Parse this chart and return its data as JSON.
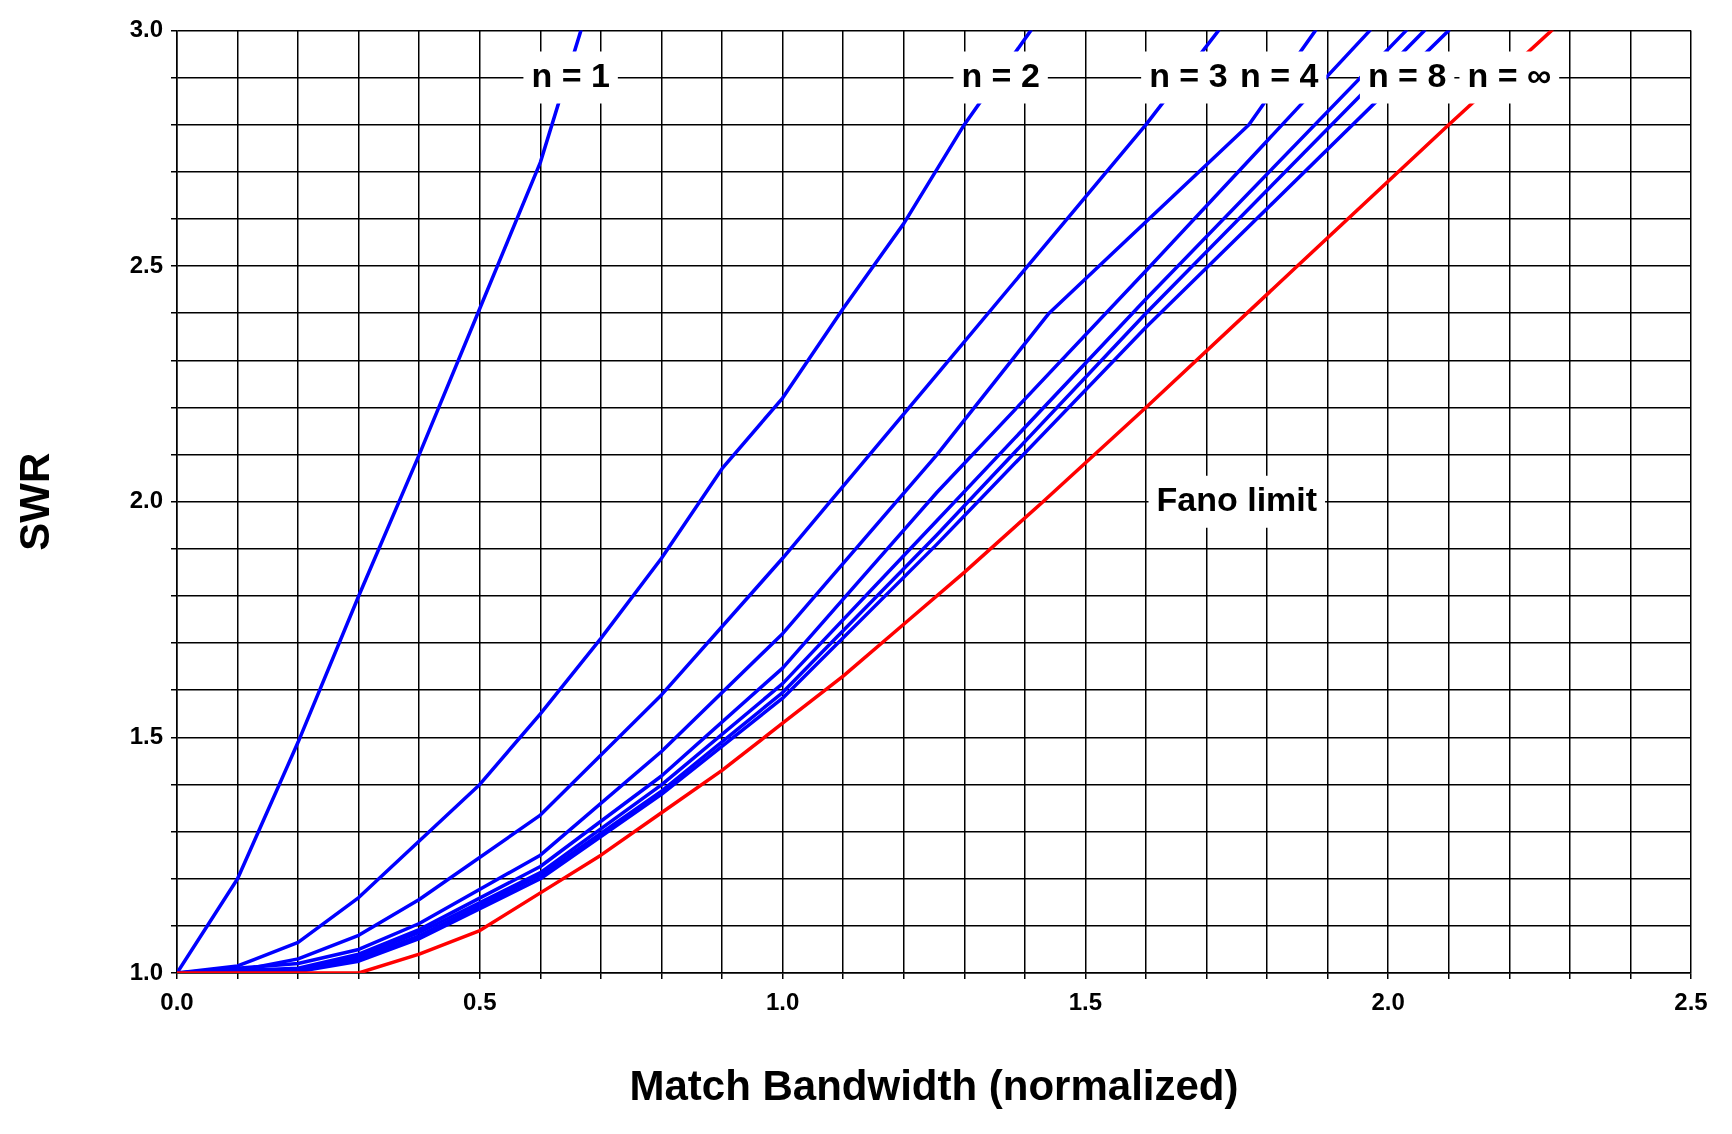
{
  "chart_data": {
    "type": "line",
    "xlabel": "Match Bandwidth (normalized)",
    "ylabel": "SWR",
    "xlim": [
      0,
      2.5
    ],
    "ylim": [
      1,
      3
    ],
    "xticks": [
      {
        "value": 0,
        "label": "0.0"
      },
      {
        "value": 0.1,
        "label": null
      },
      {
        "value": 0.2,
        "label": null
      },
      {
        "value": 0.3,
        "label": null
      },
      {
        "value": 0.4,
        "label": null
      },
      {
        "value": 0.5,
        "label": "0.5"
      },
      {
        "value": 0.6,
        "label": null
      },
      {
        "value": 0.7,
        "label": null
      },
      {
        "value": 0.8,
        "label": null
      },
      {
        "value": 0.9,
        "label": null
      },
      {
        "value": 1,
        "label": "1.0"
      },
      {
        "value": 1.1,
        "label": null
      },
      {
        "value": 1.2,
        "label": null
      },
      {
        "value": 1.3,
        "label": null
      },
      {
        "value": 1.4,
        "label": null
      },
      {
        "value": 1.5,
        "label": "1.5"
      },
      {
        "value": 1.6,
        "label": null
      },
      {
        "value": 1.7,
        "label": null
      },
      {
        "value": 1.8,
        "label": null
      },
      {
        "value": 1.9,
        "label": null
      },
      {
        "value": 2,
        "label": "2.0"
      },
      {
        "value": 2.1,
        "label": null
      },
      {
        "value": 2.2,
        "label": null
      },
      {
        "value": 2.3,
        "label": null
      },
      {
        "value": 2.4,
        "label": null
      },
      {
        "value": 2.5,
        "label": "2.5"
      }
    ],
    "yticks": [
      {
        "value": 1,
        "label": "1.0"
      },
      {
        "value": 1.1,
        "label": null
      },
      {
        "value": 1.2,
        "label": null
      },
      {
        "value": 1.3,
        "label": null
      },
      {
        "value": 1.4,
        "label": null
      },
      {
        "value": 1.5,
        "label": "1.5"
      },
      {
        "value": 1.6,
        "label": null
      },
      {
        "value": 1.7,
        "label": null
      },
      {
        "value": 1.8,
        "label": null
      },
      {
        "value": 1.9,
        "label": null
      },
      {
        "value": 2,
        "label": "2.0"
      },
      {
        "value": 2.1,
        "label": null
      },
      {
        "value": 2.2,
        "label": null
      },
      {
        "value": 2.3,
        "label": null
      },
      {
        "value": 2.4,
        "label": null
      },
      {
        "value": 2.5,
        "label": "2.5"
      },
      {
        "value": 2.6,
        "label": null
      },
      {
        "value": 2.7,
        "label": null
      },
      {
        "value": 2.8,
        "label": null
      },
      {
        "value": 2.9,
        "label": null
      },
      {
        "value": 3,
        "label": "3.0"
      }
    ],
    "grid": true,
    "legend": false,
    "marker": "none",
    "line_style": "solid",
    "series": [
      {
        "color": "#0000ff",
        "x": [
          0,
          0.1,
          0.2,
          0.3,
          0.4,
          0.5,
          0.6,
          0.667
        ],
        "values": [
          1,
          1.2,
          1.49,
          1.8,
          2.1,
          2.41,
          2.72,
          3
        ]
      },
      {
        "color": "#0000ff",
        "x": [
          0,
          0.1,
          0.2,
          0.3,
          0.4,
          0.5,
          0.6,
          0.7,
          0.8,
          0.9,
          1,
          1.1,
          1.2,
          1.3,
          1.41
        ],
        "values": [
          1,
          1.015,
          1.065,
          1.16,
          1.28,
          1.4,
          1.55,
          1.71,
          1.88,
          2.07,
          2.22,
          2.41,
          2.59,
          2.8,
          3
        ]
      },
      {
        "color": "#0000ff",
        "x": [
          0,
          0.1,
          0.2,
          0.3,
          0.4,
          0.6,
          0.8,
          1,
          1.255,
          1.6,
          1.72
        ],
        "values": [
          1,
          1.005,
          1.03,
          1.08,
          1.156,
          1.335,
          1.59,
          1.88,
          2.27,
          2.8,
          3
        ]
      },
      {
        "color": "#0000ff",
        "x": [
          0,
          0.2,
          0.3,
          0.4,
          0.6,
          0.8,
          1,
          1.255,
          1.44,
          1.77,
          1.88
        ],
        "values": [
          1,
          1.02,
          1.05,
          1.105,
          1.25,
          1.47,
          1.72,
          2.1,
          2.4,
          2.8,
          3
        ]
      },
      {
        "color": "#0000ff",
        "x": [
          0,
          0.2,
          0.3,
          0.4,
          0.6,
          0.8,
          1,
          1.255,
          1.6,
          1.97
        ],
        "values": [
          1,
          1.01,
          1.04,
          1.092,
          1.226,
          1.418,
          1.647,
          2.02,
          2.49,
          3
        ]
      },
      {
        "color": "#0000ff",
        "x": [
          0,
          0.2,
          0.3,
          0.4,
          0.6,
          0.8,
          1,
          1.255,
          1.6,
          2.03
        ],
        "values": [
          1,
          1.008,
          1.035,
          1.086,
          1.213,
          1.399,
          1.614,
          1.96,
          2.43,
          3
        ]
      },
      {
        "color": "#0000ff",
        "x": [
          0,
          0.2,
          0.3,
          0.4,
          0.6,
          0.8,
          1,
          1.255,
          1.6,
          2.06
        ],
        "values": [
          1,
          1.005,
          1.03,
          1.079,
          1.207,
          1.386,
          1.595,
          1.93,
          2.4,
          3
        ]
      },
      {
        "color": "#0000ff",
        "x": [
          0,
          0.2,
          0.3,
          0.4,
          0.6,
          0.8,
          1,
          1.255,
          1.6,
          2.1
        ],
        "values": [
          1,
          1.003,
          1.025,
          1.073,
          1.2,
          1.379,
          1.583,
          1.91,
          2.37,
          3
        ]
      },
      {
        "color": "#ff0000",
        "x": [
          0,
          0.3,
          0.4,
          0.5,
          0.6,
          0.7,
          0.8,
          0.9,
          1,
          1.1,
          1.2,
          1.3,
          1.43,
          1.6,
          1.85,
          2.1,
          2.27
        ],
        "values": [
          1,
          1,
          1.04,
          1.09,
          1.17,
          1.25,
          1.34,
          1.43,
          1.53,
          1.63,
          1.74,
          1.85,
          2,
          2.2,
          2.5,
          2.8,
          3
        ]
      }
    ],
    "annotations": [
      {
        "text": "n = 1",
        "x": 0.65,
        "y": 2.9
      },
      {
        "text": "n = 2",
        "x": 1.36,
        "y": 2.9
      },
      {
        "text": "n = 3",
        "x": 1.67,
        "y": 2.9
      },
      {
        "text": "n = 4",
        "x": 1.82,
        "y": 2.9
      },
      "n = 8",
      {
        "text": "n = ∞",
        "x": 2.2,
        "y": 2.9
      },
      "Fano limit"
    ]
  }
}
